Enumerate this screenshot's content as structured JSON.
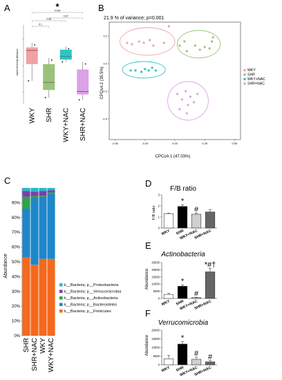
{
  "colors": {
    "WKY": "#f4a0a3",
    "SHR": "#9bc27a",
    "WKY+NAC": "#2ec4c4",
    "SHR+NAC": "#dba2e6",
    "firmicutes": "#f36a1f",
    "bacteroidetes": "#1f86c9",
    "actinobacteria": "#2ea34a",
    "verrucomicrobia": "#7b3fa8",
    "proteobacteria": "#29b9c8"
  },
  "chart_data": [
    {
      "panel": "A",
      "type": "box",
      "title": "",
      "ylabel": "Alpha Diversity Measure",
      "categories": [
        "WKY",
        "SHR",
        "WKY+NAC",
        "SHR+NAC"
      ],
      "ylim": [
        0,
        1
      ],
      "boxes": [
        {
          "name": "WKY",
          "whisker_low": 0.3,
          "q1": 0.52,
          "median": 0.7,
          "q3": 0.74,
          "whisker_high": 0.8
        },
        {
          "name": "SHR",
          "whisker_low": 0.08,
          "q1": 0.18,
          "median": 0.28,
          "q3": 0.52,
          "whisker_high": 0.6
        },
        {
          "name": "WKY+NAC",
          "whisker_low": 0.55,
          "q1": 0.58,
          "median": 0.62,
          "q3": 0.71,
          "whisker_high": 0.75
        },
        {
          "name": "SHR+NAC",
          "whisker_low": 0.05,
          "q1": 0.12,
          "median": 0.16,
          "q3": 0.45,
          "whisker_high": 0.55
        }
      ],
      "significance": [
        {
          "from": "WKY",
          "to": "SHR",
          "label": "0.1"
        },
        {
          "from": "WKY",
          "to": "WKY+NAC",
          "label": "0.88"
        },
        {
          "from": "SHR",
          "to": "SHR+NAC",
          "label": "0.07"
        },
        {
          "from": "WKY",
          "to": "SHR+NAC",
          "label": "0.039",
          "marker": "*"
        }
      ]
    },
    {
      "panel": "B",
      "type": "scatter",
      "title": "21.9 % of variance; p=0.001",
      "xlabel": "CPCoA 1 (47.03%)",
      "ylabel": "CPCoA 2 (35.5%)",
      "xlim": [
        -0.55,
        0.55
      ],
      "ylim": [
        -0.55,
        0.3
      ],
      "x_ticks": [
        "-0.50",
        "-0.25",
        "0.00",
        "0.25",
        "0.50"
      ],
      "y_ticks": [
        "0.2",
        "0.0",
        "-0.2",
        "-0.4"
      ],
      "legend_position": "right",
      "series": [
        {
          "name": "WKY",
          "points": [
            [
              -0.4,
              0.15
            ],
            [
              -0.36,
              0.14
            ],
            [
              -0.3,
              0.16
            ],
            [
              -0.26,
              0.15
            ],
            [
              -0.21,
              0.17
            ],
            [
              -0.18,
              0.13
            ],
            [
              -0.09,
              0.15
            ],
            [
              -0.05,
              0.27
            ]
          ]
        },
        {
          "name": "SHR",
          "points": [
            [
              0.04,
              0.13
            ],
            [
              0.08,
              0.16
            ],
            [
              0.1,
              0.09
            ],
            [
              0.17,
              0.13
            ],
            [
              0.21,
              0.1
            ],
            [
              0.25,
              0.12
            ],
            [
              0.29,
              0.11
            ],
            [
              0.31,
              0.16
            ],
            [
              0.32,
              0.19
            ]
          ]
        },
        {
          "name": "WKY+NAC",
          "points": [
            [
              -0.37,
              -0.05
            ],
            [
              -0.33,
              -0.05
            ],
            [
              -0.28,
              -0.06
            ],
            [
              -0.25,
              -0.04
            ],
            [
              -0.22,
              -0.05
            ],
            [
              -0.19,
              -0.03
            ],
            [
              -0.16,
              -0.05
            ]
          ]
        },
        {
          "name": "SHR+NAC",
          "points": [
            [
              0.02,
              -0.22
            ],
            [
              0.06,
              -0.26
            ],
            [
              0.09,
              -0.2
            ],
            [
              0.11,
              -0.3
            ],
            [
              0.13,
              -0.24
            ],
            [
              0.16,
              -0.28
            ],
            [
              0.19,
              -0.22
            ],
            [
              0.04,
              -0.33
            ],
            [
              0.1,
              -0.36
            ]
          ]
        }
      ],
      "ellipses": [
        {
          "name": "WKY",
          "cx": -0.23,
          "cy": 0.16,
          "rx": 0.23,
          "ry": 0.1
        },
        {
          "name": "SHR",
          "cx": 0.2,
          "cy": 0.14,
          "rx": 0.18,
          "ry": 0.1
        },
        {
          "name": "WKY+NAC",
          "cx": -0.26,
          "cy": -0.045,
          "rx": 0.18,
          "ry": 0.06
        },
        {
          "name": "SHR+NAC",
          "cx": 0.11,
          "cy": -0.27,
          "rx": 0.17,
          "ry": 0.14
        }
      ]
    },
    {
      "panel": "C",
      "type": "stacked_bar",
      "ylabel": "Abundance",
      "categories": [
        "SHR",
        "SHR+NAC",
        "WKY",
        "WKY+NAC"
      ],
      "y_ticks": [
        "0%",
        "10%",
        "20%",
        "30%",
        "40%",
        "50%",
        "60%",
        "70%",
        "80%",
        "90%"
      ],
      "ylim": [
        0,
        100
      ],
      "series": [
        {
          "name": "k__Bacteria; p__Firmicutes",
          "values": [
            53,
            48,
            52,
            52
          ]
        },
        {
          "name": "k__Bacteria; p__Bacteroidetes",
          "values": [
            33,
            45,
            42,
            44
          ]
        },
        {
          "name": "k__Bacteria; p__Actinobacteria",
          "values": [
            8,
            1.5,
            0.5,
            1
          ]
        },
        {
          "name": "k__Bacteria; p__Verrucomicrobia",
          "values": [
            4,
            3,
            3.5,
            1.5
          ]
        },
        {
          "name": "k__Bacteria; p__Proteobacteria",
          "values": [
            2,
            2.5,
            2,
            1.5
          ]
        }
      ],
      "legend_order": [
        "k__Bacteria; p__Proteobacteria",
        "k__Bacteria; p__Verrucomicrobia",
        "k__Bacteria; p__Actinobacteria",
        "k__Bacteria; p__Bacteroidetes",
        "k__Bacteria; p__Firmicutes"
      ]
    },
    {
      "panel": "D",
      "type": "bar",
      "title": "F/B ratio",
      "title_italic": false,
      "ylabel": "F/B ratio",
      "categories": [
        "WKY",
        "SHR",
        "WKY+NAC",
        "SHR+NAC"
      ],
      "ylim": [
        0,
        3
      ],
      "y_ticks": [
        "0",
        "1",
        "2",
        "3"
      ],
      "values": [
        1.3,
        1.95,
        1.25,
        1.45
      ],
      "errors": [
        0.05,
        0.15,
        0.1,
        0.2
      ],
      "markers": [
        "",
        "*",
        "#",
        ""
      ]
    },
    {
      "panel": "E",
      "type": "bar",
      "title": "Actinobacteria",
      "title_italic": true,
      "ylabel": "Abundance",
      "categories": [
        "WKY",
        "SHR",
        "WKY+NAC",
        "SHR+NAC"
      ],
      "ylim": [
        0,
        25000
      ],
      "y_ticks": [
        "0",
        "5000",
        "10000",
        "15000",
        "20000",
        "25000"
      ],
      "values": [
        2800,
        8500,
        600,
        18500
      ],
      "errors": [
        800,
        900,
        200,
        2500
      ],
      "markers": [
        "",
        "*",
        "#",
        "*#†"
      ]
    },
    {
      "panel": "F",
      "type": "bar",
      "title": "Verrucomicrobia",
      "title_italic": true,
      "ylabel": "Abundance",
      "categories": [
        "WKY",
        "SHR",
        "WKY+NAC",
        "SHR+NAC"
      ],
      "ylim": [
        0,
        20000
      ],
      "y_ticks": [
        "0",
        "5000",
        "10000",
        "15000",
        "20000"
      ],
      "values": [
        3500,
        12000,
        3200,
        1700
      ],
      "errors": [
        2000,
        1500,
        1200,
        800
      ],
      "markers": [
        "",
        "*",
        "#",
        "#"
      ]
    }
  ],
  "panels": {
    "A": "A",
    "B": "B",
    "C": "C",
    "D": "D",
    "E": "E",
    "F": "F"
  }
}
